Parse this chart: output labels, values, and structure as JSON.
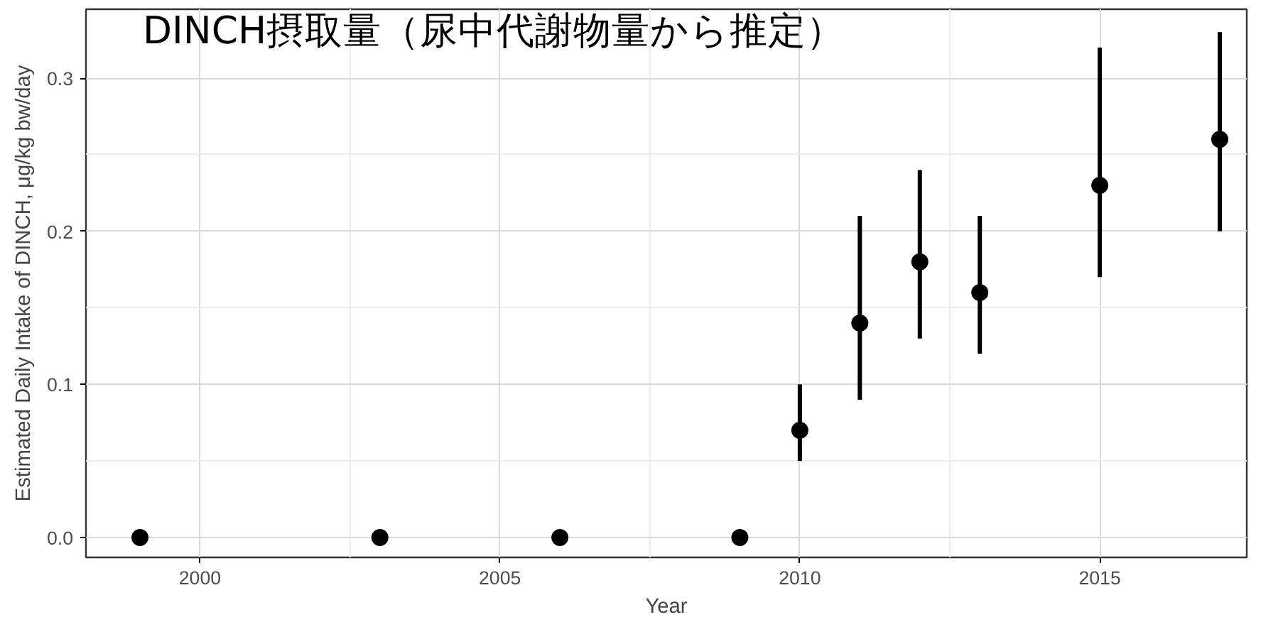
{
  "chart_data": {
    "type": "scatter",
    "xlabel": "Year",
    "ylabel": "Estimated Daily Intake of DINCH, μg/kg bw/day",
    "annotations": [
      "DINCH摂取量（尿中代謝物量から推定）"
    ],
    "x": [
      1999,
      2003,
      2006,
      2009,
      2010,
      2011,
      2012,
      2013,
      2015,
      2017
    ],
    "values": [
      0,
      0,
      0,
      0,
      0.07,
      0.14,
      0.18,
      0.16,
      0.23,
      0.26
    ],
    "errors": [
      null,
      null,
      null,
      null,
      [
        0.05,
        0.1
      ],
      [
        0.09,
        0.21
      ],
      [
        0.13,
        0.24
      ],
      [
        0.12,
        0.21
      ],
      [
        0.17,
        0.32
      ],
      [
        0.2,
        0.33
      ]
    ],
    "color": "#000000",
    "marker": "circle",
    "xlim": [
      1998.1,
      2017.45
    ],
    "xticks": [
      2000,
      2005,
      2010,
      2015
    ],
    "ylim": [
      -0.013,
      0.345
    ],
    "yticks": [
      {
        "value": 0,
        "label": "0.0"
      },
      {
        "value": 0.1,
        "label": "0.1"
      },
      {
        "value": 0.2,
        "label": "0.2"
      },
      {
        "value": 0.3,
        "label": "0.3"
      }
    ],
    "grid": true
  }
}
